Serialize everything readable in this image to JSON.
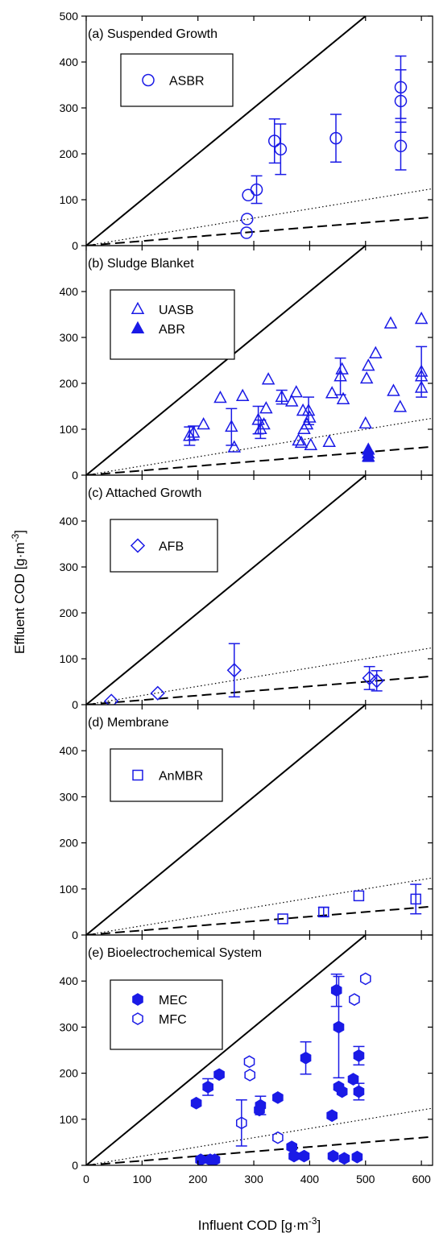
{
  "figure": {
    "ylabel": "Effluent COD [g·m⁻³]",
    "xlabel": "Influent COD [g·m⁻³]",
    "x_ticks": [
      0,
      100,
      200,
      300,
      400,
      500,
      600
    ],
    "xlim": [
      0,
      620
    ],
    "reference_lines": [
      {
        "style": "solid",
        "slope": 1.0
      },
      {
        "style": "dotted",
        "slope": 0.2
      },
      {
        "style": "dashed",
        "slope": 0.1
      }
    ],
    "marker_color": "#1a1ae6"
  },
  "chart_data": [
    {
      "type": "scatter",
      "title": "(a) Suspended Growth",
      "ylim": [
        0,
        500
      ],
      "y_ticks": [
        0,
        100,
        200,
        300,
        400,
        500
      ],
      "series": [
        {
          "name": "ASBR",
          "marker": "circle",
          "filled": false,
          "points": [
            {
              "x": 287,
              "y": 28
            },
            {
              "x": 288,
              "y": 58
            },
            {
              "x": 290,
              "y": 110
            },
            {
              "x": 305,
              "y": 122,
              "err": 30
            },
            {
              "x": 337,
              "y": 228,
              "err": 48
            },
            {
              "x": 348,
              "y": 210,
              "err": 55
            },
            {
              "x": 447,
              "y": 234,
              "err": 52
            },
            {
              "x": 563,
              "y": 345,
              "err": 68
            },
            {
              "x": 563,
              "y": 315,
              "err": 68
            },
            {
              "x": 563,
              "y": 217,
              "err": 52
            }
          ]
        }
      ]
    },
    {
      "type": "scatter",
      "title": "(b) Sludge Blanket",
      "ylim": [
        0,
        500
      ],
      "y_ticks": [
        0,
        100,
        200,
        300,
        400
      ],
      "series": [
        {
          "name": "UASB",
          "marker": "triangle",
          "filled": false,
          "points": [
            {
              "x": 185,
              "y": 85,
              "err": 20
            },
            {
              "x": 192,
              "y": 92,
              "err": 15
            },
            {
              "x": 210,
              "y": 110
            },
            {
              "x": 240,
              "y": 168
            },
            {
              "x": 260,
              "y": 105,
              "err": 40
            },
            {
              "x": 265,
              "y": 60
            },
            {
              "x": 280,
              "y": 172
            },
            {
              "x": 308,
              "y": 120,
              "err": 30
            },
            {
              "x": 312,
              "y": 100,
              "err": 20
            },
            {
              "x": 318,
              "y": 110
            },
            {
              "x": 322,
              "y": 145
            },
            {
              "x": 326,
              "y": 208
            },
            {
              "x": 350,
              "y": 170,
              "err": 15
            },
            {
              "x": 368,
              "y": 160
            },
            {
              "x": 376,
              "y": 180
            },
            {
              "x": 380,
              "y": 75
            },
            {
              "x": 385,
              "y": 70
            },
            {
              "x": 388,
              "y": 140
            },
            {
              "x": 390,
              "y": 100
            },
            {
              "x": 395,
              "y": 110
            },
            {
              "x": 398,
              "y": 140,
              "err": 30
            },
            {
              "x": 400,
              "y": 125
            },
            {
              "x": 402,
              "y": 65
            },
            {
              "x": 435,
              "y": 72
            },
            {
              "x": 440,
              "y": 178
            },
            {
              "x": 455,
              "y": 215,
              "err": 40
            },
            {
              "x": 460,
              "y": 165
            },
            {
              "x": 458,
              "y": 230
            },
            {
              "x": 500,
              "y": 112
            },
            {
              "x": 502,
              "y": 210
            },
            {
              "x": 505,
              "y": 238
            },
            {
              "x": 518,
              "y": 265
            },
            {
              "x": 545,
              "y": 330
            },
            {
              "x": 550,
              "y": 183
            },
            {
              "x": 562,
              "y": 148
            },
            {
              "x": 600,
              "y": 225,
              "err": 55
            },
            {
              "x": 600,
              "y": 190
            },
            {
              "x": 600,
              "y": 340
            },
            {
              "x": 600,
              "y": 215
            }
          ]
        },
        {
          "name": "ABR",
          "marker": "triangle",
          "filled": true,
          "points": [
            {
              "x": 505,
              "y": 40,
              "err": 10
            },
            {
              "x": 505,
              "y": 55
            },
            {
              "x": 505,
              "y": 47
            }
          ]
        }
      ]
    },
    {
      "type": "scatter",
      "title": "(c) Attached Growth",
      "ylim": [
        0,
        500
      ],
      "y_ticks": [
        0,
        100,
        200,
        300,
        400
      ],
      "series": [
        {
          "name": "AFB",
          "marker": "diamond",
          "filled": false,
          "points": [
            {
              "x": 45,
              "y": 8
            },
            {
              "x": 128,
              "y": 25
            },
            {
              "x": 265,
              "y": 75,
              "err": 58
            },
            {
              "x": 507,
              "y": 58,
              "err": 25
            },
            {
              "x": 520,
              "y": 52,
              "err": 22
            }
          ]
        }
      ]
    },
    {
      "type": "scatter",
      "title": "(d) Membrane",
      "ylim": [
        0,
        500
      ],
      "y_ticks": [
        0,
        100,
        200,
        300,
        400
      ],
      "series": [
        {
          "name": "AnMBR",
          "marker": "square",
          "filled": false,
          "points": [
            {
              "x": 352,
              "y": 35
            },
            {
              "x": 425,
              "y": 50,
              "err": 10
            },
            {
              "x": 488,
              "y": 85
            },
            {
              "x": 590,
              "y": 78,
              "err": 32
            }
          ]
        }
      ]
    },
    {
      "type": "scatter",
      "title": "(e) Bioelectrochemical System",
      "ylim": [
        0,
        500
      ],
      "y_ticks": [
        0,
        100,
        200,
        300,
        400
      ],
      "series": [
        {
          "name": "MEC",
          "marker": "hexagon",
          "filled": true,
          "points": [
            {
              "x": 197,
              "y": 135
            },
            {
              "x": 205,
              "y": 12
            },
            {
              "x": 218,
              "y": 170,
              "err": 18
            },
            {
              "x": 222,
              "y": 12
            },
            {
              "x": 230,
              "y": 12
            },
            {
              "x": 238,
              "y": 197
            },
            {
              "x": 310,
              "y": 120
            },
            {
              "x": 312,
              "y": 130,
              "err": 20
            },
            {
              "x": 343,
              "y": 147
            },
            {
              "x": 368,
              "y": 40
            },
            {
              "x": 372,
              "y": 20
            },
            {
              "x": 390,
              "y": 20
            },
            {
              "x": 393,
              "y": 233,
              "err": 35
            },
            {
              "x": 440,
              "y": 108
            },
            {
              "x": 442,
              "y": 20
            },
            {
              "x": 448,
              "y": 380,
              "err": 35
            },
            {
              "x": 452,
              "y": 300,
              "err": 110
            },
            {
              "x": 452,
              "y": 170
            },
            {
              "x": 458,
              "y": 160
            },
            {
              "x": 462,
              "y": 15
            },
            {
              "x": 478,
              "y": 187
            },
            {
              "x": 485,
              "y": 18
            },
            {
              "x": 488,
              "y": 160,
              "err": 18
            },
            {
              "x": 488,
              "y": 238,
              "err": 20
            }
          ]
        },
        {
          "name": "MFC",
          "marker": "hexagon",
          "filled": false,
          "points": [
            {
              "x": 278,
              "y": 92,
              "err": 50
            },
            {
              "x": 292,
              "y": 225
            },
            {
              "x": 293,
              "y": 196
            },
            {
              "x": 343,
              "y": 60
            },
            {
              "x": 480,
              "y": 360
            },
            {
              "x": 500,
              "y": 405
            }
          ]
        }
      ]
    }
  ]
}
